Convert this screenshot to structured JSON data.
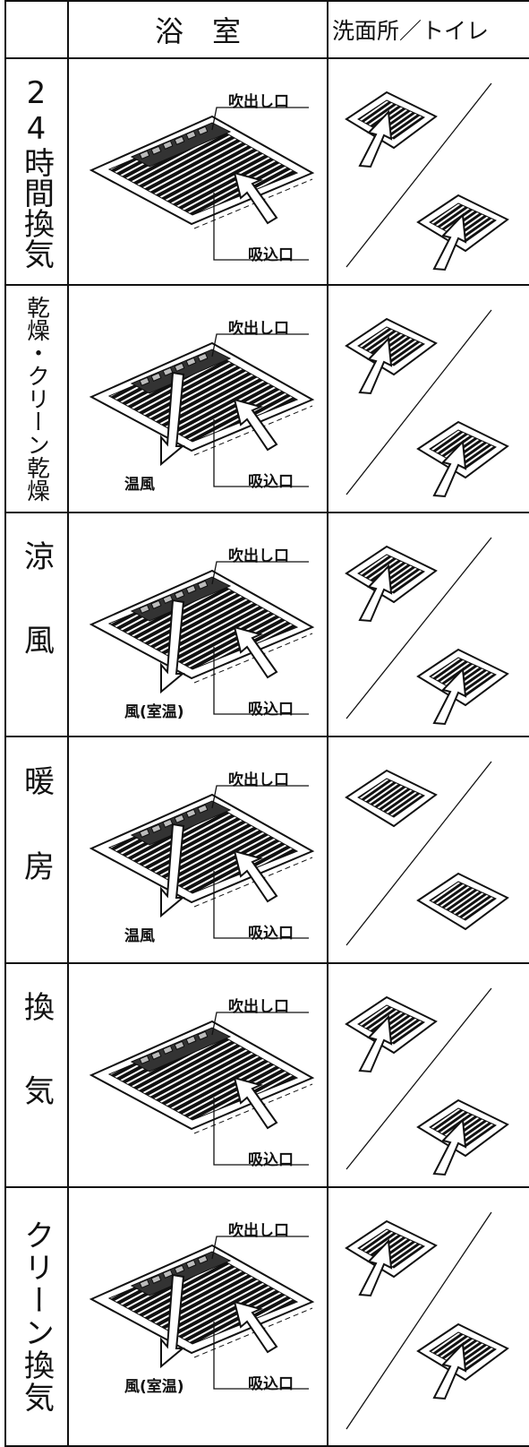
{
  "header": {
    "bathroom": "浴　室",
    "washroom_toilet": "洗面所／トイレ"
  },
  "rows": [
    {
      "mode": "24時間換気",
      "outlet": "吹出し口",
      "inlet": "吸込口",
      "washroom_airflow": true
    },
    {
      "mode": "乾燥・クリーン乾燥",
      "outlet": "吹出し口",
      "inlet": "吸込口",
      "airflow": "温風",
      "washroom_airflow": true
    },
    {
      "mode": "涼風",
      "outlet": "吹出し口",
      "inlet": "吸込口",
      "airflow": "風(室温)",
      "washroom_airflow": true
    },
    {
      "mode": "暖房",
      "outlet": "吹出し口",
      "inlet": "吸込口",
      "airflow": "温風",
      "washroom_airflow": false
    },
    {
      "mode": "換気",
      "outlet": "吹出し口",
      "inlet": "吸込口",
      "washroom_airflow": true
    },
    {
      "mode": "クリーン換気",
      "outlet": "吹出し口",
      "inlet": "吸込口",
      "airflow": "風(室温)",
      "washroom_airflow": true
    }
  ]
}
